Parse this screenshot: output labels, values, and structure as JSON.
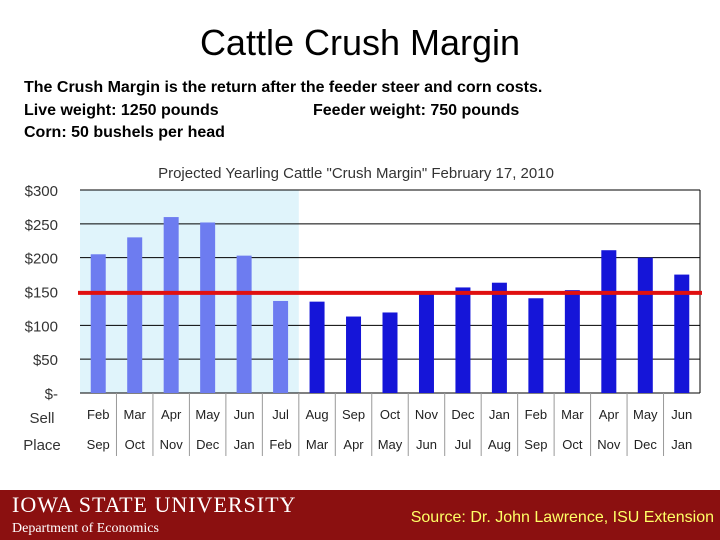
{
  "slide": {
    "title": "Cattle Crush Margin",
    "description": [
      "The Crush Margin is the return after the feeder steer and corn costs.",
      "Live weight:  1250 pounds",
      "Feeder weight:  750 pounds",
      "Corn:  50 bushels per head"
    ]
  },
  "footer": {
    "logo_text": "IOWA STATE UNIVERSITY",
    "department": "Department of Economics",
    "source": "Source: Dr. John Lawrence, ISU Extension"
  },
  "chart_data": {
    "type": "bar",
    "title": "Projected Yearling Cattle \"Crush Margin\" February 17, 2010",
    "row_labels": [
      "Sell",
      "Place"
    ],
    "categories": [
      "Feb",
      "Mar",
      "Apr",
      "May",
      "Jun",
      "Jul",
      "Aug",
      "Sep",
      "Oct",
      "Nov",
      "Dec",
      "Jan",
      "Feb",
      "Mar",
      "Apr",
      "May",
      "Jun"
    ],
    "place_categories": [
      "Sep",
      "Oct",
      "Nov",
      "Dec",
      "Jan",
      "Feb",
      "Mar",
      "Apr",
      "May",
      "Jun",
      "Jul",
      "Aug",
      "Sep",
      "Oct",
      "Nov",
      "Dec",
      "Jan"
    ],
    "values": [
      205,
      230,
      260,
      252,
      203,
      136,
      135,
      113,
      119,
      148,
      156,
      163,
      140,
      152,
      211,
      200,
      175
    ],
    "ylim": [
      0,
      300
    ],
    "yticks": [
      0,
      50,
      100,
      150,
      200,
      250,
      300
    ],
    "ytick_labels": [
      "$-",
      "$50",
      "$100",
      "$150",
      "$200",
      "$250",
      "$300"
    ],
    "reference_line": 148,
    "shaded_region_count": 6,
    "colors": {
      "past_bar": "#6d7cf0",
      "future_bar": "#1515d8",
      "reference_line": "#e01010",
      "shaded_region": "#e0f4fb",
      "grid": "#000000"
    },
    "grid": true
  }
}
